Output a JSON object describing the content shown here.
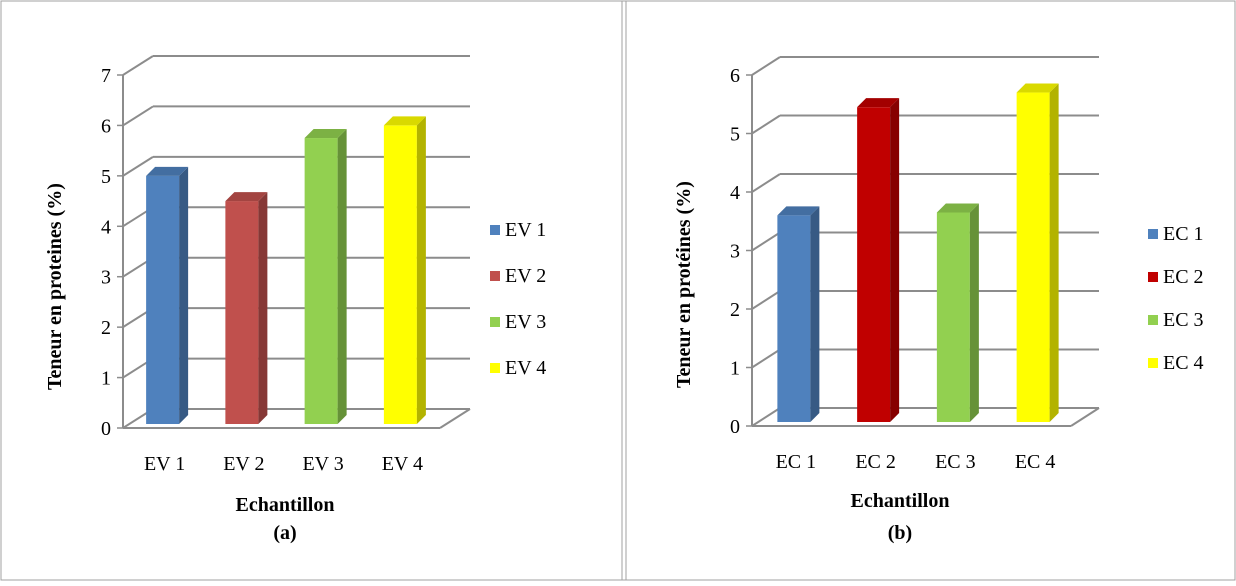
{
  "chart_data": [
    {
      "type": "bar",
      "categories": [
        "EV 1",
        "EV 2",
        "EV 3",
        "EV 4"
      ],
      "values": [
        5.0,
        4.5,
        5.75,
        6.0
      ],
      "colors": [
        "#4f81bd",
        "#c0504d",
        "#92d050",
        "#ffff00"
      ],
      "xlabel": "Echantillon",
      "ylabel": "Teneur en proteines (%)",
      "caption": "(a)",
      "ylim": [
        0,
        7
      ],
      "yticks": [
        0,
        1,
        2,
        3,
        4,
        5,
        6,
        7
      ],
      "legend": [
        "EV 1",
        "EV 2",
        "EV 3",
        "EV 4"
      ],
      "legend_position": "right",
      "grid": true,
      "style": "3d-column"
    },
    {
      "type": "bar",
      "categories": [
        "EC 1",
        "EC 2",
        "EC 3",
        "EC 4"
      ],
      "values": [
        3.6,
        5.45,
        3.65,
        5.7
      ],
      "colors": [
        "#4f81bd",
        "#c00000",
        "#92d050",
        "#ffff00"
      ],
      "xlabel": "Echantillon",
      "ylabel": "Teneur en protéines (%)",
      "caption": "(b)",
      "ylim": [
        0,
        6
      ],
      "yticks": [
        0,
        1,
        2,
        3,
        4,
        5,
        6
      ],
      "legend": [
        "EC 1",
        "EC 2",
        "EC 3",
        "EC 4"
      ],
      "legend_position": "right",
      "grid": true,
      "style": "3d-column"
    }
  ]
}
